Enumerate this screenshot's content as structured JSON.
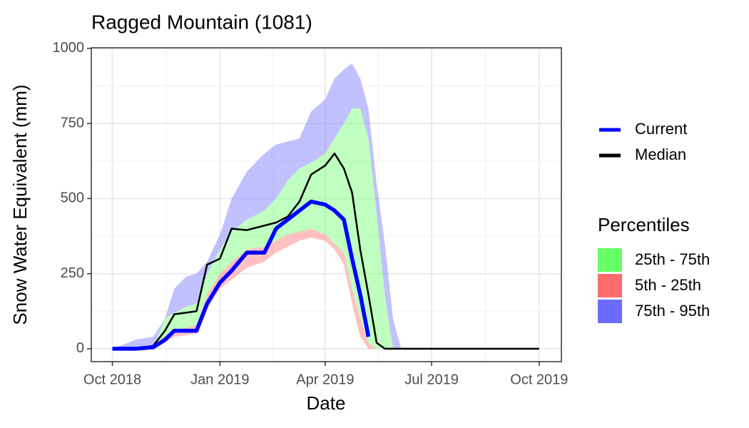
{
  "chart_data": {
    "type": "line",
    "title": "Ragged Mountain (1081)",
    "x_label": "Date",
    "y_label": "Snow Water Equivalent (mm)",
    "x": [
      "2018-10-01",
      "2018-10-21",
      "2018-11-05",
      "2018-11-15",
      "2018-11-23",
      "2018-12-03",
      "2018-12-12",
      "2018-12-21",
      "2019-01-01",
      "2019-01-11",
      "2019-01-24",
      "2019-02-08",
      "2019-02-18",
      "2019-02-28",
      "2019-03-10",
      "2019-03-20",
      "2019-04-01",
      "2019-04-09",
      "2019-04-17",
      "2019-04-24",
      "2019-05-01",
      "2019-05-08",
      "2019-05-15",
      "2019-05-22",
      "2019-05-29",
      "2019-06-05",
      "2019-07-02",
      "2019-10-01"
    ],
    "xlim": [
      "2018-09-13",
      "2019-10-20"
    ],
    "xticks": [
      {
        "value": "2018-10-01",
        "label": "Oct 2018"
      },
      {
        "value": "2019-01-01",
        "label": "Jan 2019"
      },
      {
        "value": "2019-04-01",
        "label": "Apr 2019"
      },
      {
        "value": "2019-07-01",
        "label": "Jul 2019"
      },
      {
        "value": "2019-10-01",
        "label": "Oct 2019"
      }
    ],
    "ylim": [
      -43,
      1002
    ],
    "yticks": [
      0,
      250,
      500,
      750,
      1000
    ],
    "grid": true,
    "series": [
      {
        "name": "Current",
        "color": "#0000ff",
        "values": [
          0,
          0,
          5,
          30,
          60,
          60,
          60,
          150,
          220,
          260,
          320,
          320,
          400,
          430,
          460,
          490,
          480,
          460,
          430,
          300,
          180,
          40,
          null,
          null,
          null,
          null,
          null,
          null
        ]
      },
      {
        "name": "Median",
        "color": "#000000",
        "values": [
          0,
          0,
          10,
          60,
          115,
          120,
          125,
          280,
          300,
          400,
          395,
          410,
          420,
          440,
          490,
          580,
          610,
          650,
          600,
          520,
          330,
          180,
          20,
          0,
          0,
          0,
          0,
          0
        ]
      }
    ],
    "bands_title": "Percentiles",
    "bands": [
      {
        "name": "25th - 75th",
        "color": "#66ff66",
        "lower": [
          0,
          0,
          0,
          40,
          60,
          70,
          80,
          180,
          250,
          290,
          330,
          340,
          360,
          380,
          390,
          400,
          380,
          350,
          320,
          200,
          100,
          20,
          0,
          0,
          0,
          0,
          0,
          0
        ],
        "upper": [
          0,
          0,
          5,
          100,
          120,
          140,
          150,
          250,
          330,
          390,
          430,
          460,
          500,
          560,
          600,
          620,
          650,
          700,
          750,
          800,
          800,
          700,
          450,
          180,
          0,
          0,
          0,
          0
        ]
      },
      {
        "name": "5th - 25th",
        "color": "#ff6b6b",
        "lower": [
          0,
          0,
          0,
          20,
          40,
          45,
          50,
          130,
          200,
          230,
          270,
          290,
          320,
          340,
          360,
          370,
          360,
          330,
          280,
          150,
          40,
          0,
          0,
          0,
          0,
          0,
          0,
          0
        ],
        "upper": [
          0,
          0,
          0,
          40,
          60,
          70,
          80,
          180,
          250,
          290,
          330,
          340,
          360,
          380,
          390,
          400,
          380,
          350,
          320,
          200,
          100,
          20,
          0,
          0,
          0,
          0,
          0,
          0
        ]
      },
      {
        "name": "75th - 95th",
        "color": "#6b6bff",
        "lower": [
          0,
          0,
          5,
          100,
          120,
          140,
          150,
          250,
          330,
          390,
          430,
          460,
          500,
          560,
          600,
          620,
          650,
          700,
          750,
          800,
          800,
          700,
          450,
          180,
          0,
          0,
          0,
          0
        ],
        "upper": [
          0,
          30,
          40,
          100,
          200,
          240,
          250,
          290,
          380,
          500,
          590,
          650,
          680,
          690,
          700,
          790,
          830,
          900,
          930,
          950,
          900,
          800,
          550,
          350,
          100,
          0,
          0,
          0
        ]
      }
    ]
  }
}
